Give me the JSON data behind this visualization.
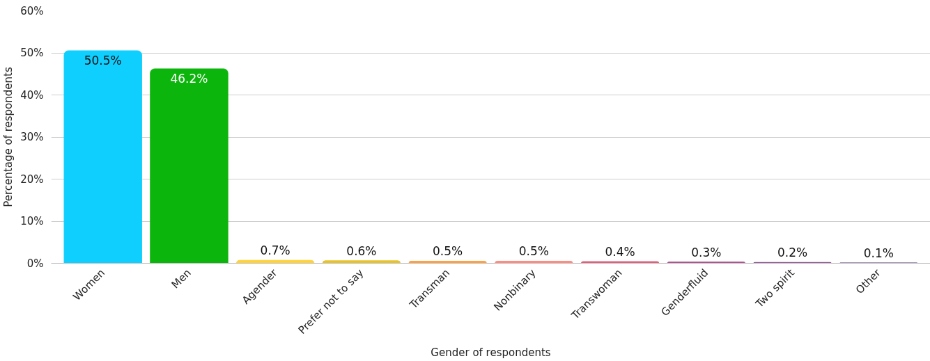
{
  "chart_data": {
    "type": "bar",
    "xlabel": "Gender of respondents",
    "ylabel": "Percentage of respondents",
    "categories": [
      "Women",
      "Men",
      "Agender",
      "Prefer not to say",
      "Transman",
      "Nonbinary",
      "Transwoman",
      "Genderfluid",
      "Two spirit",
      "Other"
    ],
    "values": [
      50.5,
      46.2,
      0.7,
      0.6,
      0.5,
      0.5,
      0.4,
      0.3,
      0.2,
      0.1
    ],
    "colors": [
      "#0fcfff",
      "#0cb50c",
      "#ffd23c",
      "#e8c22a",
      "#ff9f40",
      "#ff8a80",
      "#e0607a",
      "#b05090",
      "#8a4a90",
      "#6a4a80"
    ],
    "value_labels": [
      "50.5%",
      "46.2%",
      "0.7%",
      "0.6%",
      "0.5%",
      "0.5%",
      "0.4%",
      "0.3%",
      "0.2%",
      "0.1%"
    ],
    "ylim": [
      0,
      60
    ],
    "yticks": [
      {
        "value": 0,
        "label": "0%"
      },
      {
        "value": 10,
        "label": "10%"
      },
      {
        "value": 20,
        "label": "20%"
      },
      {
        "value": 30,
        "label": "30%"
      },
      {
        "value": 40,
        "label": "40%"
      },
      {
        "value": 50,
        "label": "50%"
      },
      {
        "value": 60,
        "label": "60%"
      }
    ],
    "grid": "y"
  }
}
